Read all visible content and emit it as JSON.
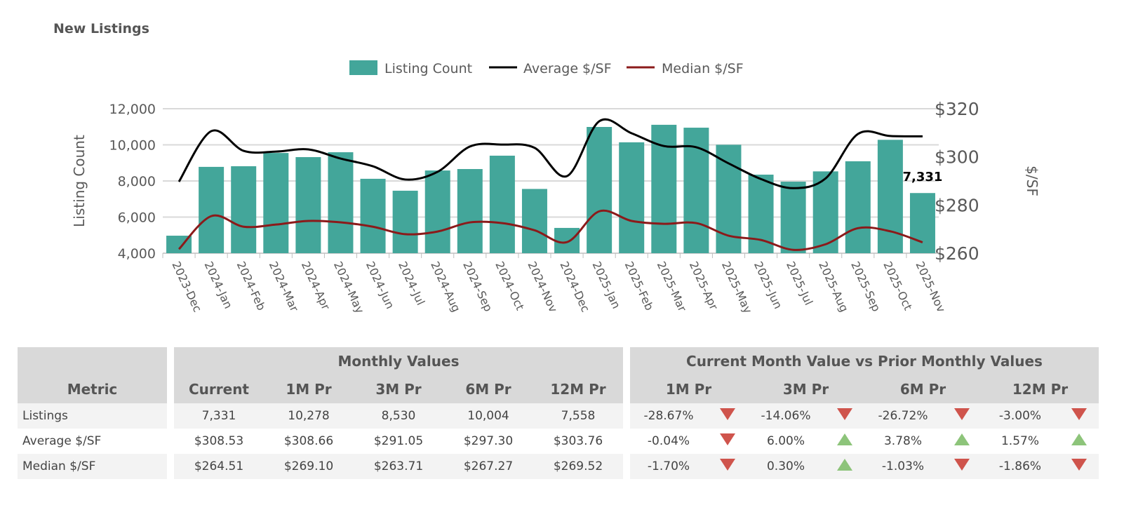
{
  "title": "New Listings",
  "colors": {
    "bar": "#43a69a",
    "average": "#000000",
    "median": "#8b1a1a",
    "down": "#cf544c",
    "up": "#8dc47a"
  },
  "chart_data": {
    "type": "bar+line",
    "categories": [
      "2023-Dec",
      "2024-Jan",
      "2024-Feb",
      "2024-Mar",
      "2024-Apr",
      "2024-May",
      "2024-Jun",
      "2024-Jul",
      "2024-Aug",
      "2024-Sep",
      "2024-Oct",
      "2024-Nov",
      "2024-Dec",
      "2025-Jan",
      "2025-Feb",
      "2025-Mar",
      "2025-Apr",
      "2025-May",
      "2025-Jun",
      "2025-Jul",
      "2025-Aug",
      "2025-Sep",
      "2025-Oct",
      "2025-Nov"
    ],
    "series": [
      {
        "name": "Listing Count",
        "type": "bar",
        "axis": "left",
        "values": [
          4970,
          8780,
          8815,
          9550,
          9320,
          9590,
          8120,
          7460,
          8580,
          8660,
          9400,
          7558,
          5400,
          10990,
          10140,
          11110,
          10950,
          10004,
          8350,
          7960,
          8530,
          9090,
          10278,
          7331
        ]
      },
      {
        "name": "Average $/SF",
        "type": "line",
        "axis": "right",
        "values": [
          289.7,
          310.7,
          302.5,
          302.2,
          303.1,
          299.3,
          296.1,
          290.6,
          293.8,
          304.3,
          305.1,
          303.76,
          292.0,
          314.8,
          309.8,
          304.5,
          304.0,
          297.3,
          290.8,
          287.0,
          291.05,
          309.5,
          308.66,
          308.53
        ]
      },
      {
        "name": "Median $/SF",
        "type": "line",
        "axis": "right",
        "values": [
          261.7,
          275.4,
          271.0,
          271.9,
          273.4,
          272.8,
          271.0,
          267.9,
          269.0,
          272.8,
          272.5,
          269.52,
          264.6,
          277.4,
          273.4,
          272.2,
          272.5,
          267.27,
          265.5,
          261.4,
          263.71,
          270.4,
          269.1,
          264.51
        ]
      }
    ],
    "ylabel": "Listing Count",
    "y2label": "$/SF",
    "ylim": [
      4000,
      12000
    ],
    "y2lim": [
      260,
      320
    ],
    "yticks": [
      "4,000",
      "6,000",
      "8,000",
      "10,000",
      "12,000"
    ],
    "y2ticks": [
      "$260",
      "$280",
      "$300",
      "$320"
    ],
    "data_label": "7,331",
    "legend": "top",
    "grid": "horizontal"
  },
  "table": {
    "metric_header": "Metric",
    "monthly_header": "Monthly Values",
    "compare_header": "Current Month Value vs Prior Monthly Values",
    "monthly_cols": [
      "Current",
      "1M Pr",
      "3M Pr",
      "6M Pr",
      "12M Pr"
    ],
    "compare_cols": [
      "1M Pr",
      "3M Pr",
      "6M Pr",
      "12M Pr"
    ],
    "rows": [
      {
        "metric": "Listings",
        "values": [
          "7,331",
          "10,278",
          "8,530",
          "10,004",
          "7,558"
        ],
        "changes": [
          "-28.67%",
          "-14.06%",
          "-26.72%",
          "-3.00%"
        ],
        "dirs": [
          "down",
          "down",
          "down",
          "down"
        ]
      },
      {
        "metric": "Average $/SF",
        "values": [
          "$308.53",
          "$308.66",
          "$291.05",
          "$297.30",
          "$303.76"
        ],
        "changes": [
          "-0.04%",
          "6.00%",
          "3.78%",
          "1.57%"
        ],
        "dirs": [
          "down",
          "up",
          "up",
          "up"
        ]
      },
      {
        "metric": "Median $/SF",
        "values": [
          "$264.51",
          "$269.10",
          "$263.71",
          "$267.27",
          "$269.52"
        ],
        "changes": [
          "-1.70%",
          "0.30%",
          "-1.03%",
          "-1.86%"
        ],
        "dirs": [
          "down",
          "up",
          "down",
          "down"
        ]
      }
    ]
  }
}
